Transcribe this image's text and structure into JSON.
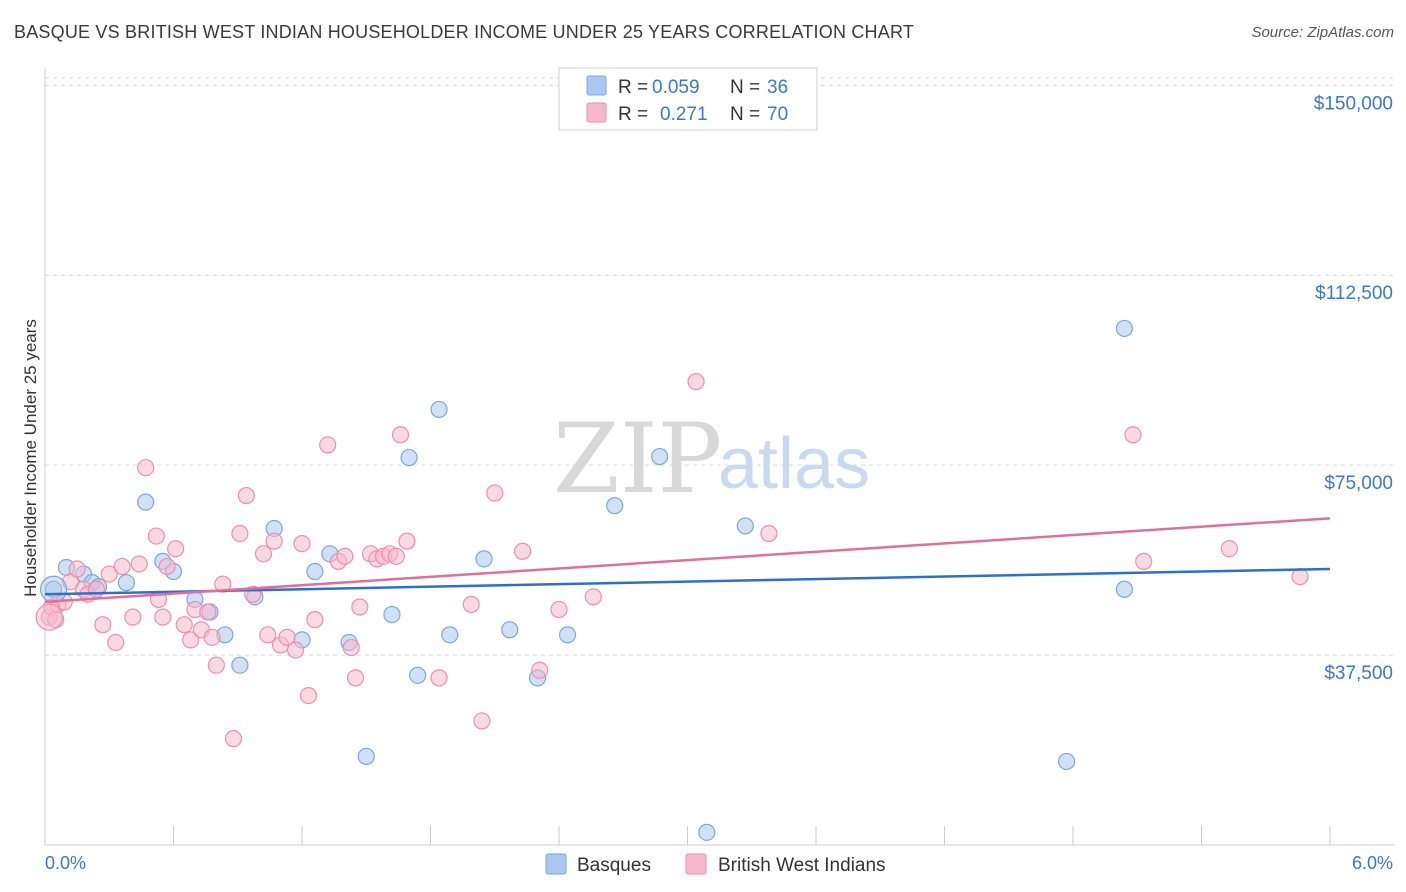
{
  "title": "BASQUE VS BRITISH WEST INDIAN HOUSEHOLDER INCOME UNDER 25 YEARS CORRELATION CHART",
  "source": "Source: ZipAtlas.com",
  "watermark": {
    "zip": "ZIP",
    "atlas": "atlas"
  },
  "legend": {
    "rows": [
      {
        "r_label": "R =",
        "r_value": "0.059",
        "n_label": "N =",
        "n_value": "36",
        "color": "#a9c8ef",
        "stroke": "#7aa7e0"
      },
      {
        "r_label": "R =",
        "r_value": "0.271",
        "n_label": "N =",
        "n_value": "70",
        "color": "#f6b9cc",
        "stroke": "#ee8fae"
      }
    ]
  },
  "bottom_legend": [
    {
      "label": "Basques",
      "color": "#a9c8ef",
      "stroke": "#7aa7e0"
    },
    {
      "label": "British West Indians",
      "color": "#f6b9cc",
      "stroke": "#ee8fae"
    }
  ],
  "chart_data": {
    "type": "scatter",
    "title": "BASQUE VS BRITISH WEST INDIAN HOUSEHOLDER INCOME UNDER 25 YEARS CORRELATION CHART",
    "xlabel": "",
    "ylabel": "Householder Income Under 25 years",
    "xlim": [
      0,
      6
    ],
    "ylim": [
      0,
      155000
    ],
    "x_tick_labels": [
      "0.0%",
      "6.0%"
    ],
    "y_ticks": [
      37500,
      75000,
      112500,
      150000
    ],
    "y_tick_labels": [
      "$37,500",
      "$75,000",
      "$112,500",
      "$150,000"
    ],
    "grid": true,
    "legend_position": "top-center",
    "series": [
      {
        "name": "Basques",
        "color": "#7aa7e0",
        "fill": "#a9c8ef",
        "trend": {
          "x": [
            0,
            6
          ],
          "y": [
            49500,
            54500
          ],
          "color": "#2f6fcc"
        },
        "points": [
          [
            0.04,
            50500
          ],
          [
            0.1,
            54800
          ],
          [
            0.18,
            53500
          ],
          [
            0.22,
            51800
          ],
          [
            0.25,
            51000
          ],
          [
            0.38,
            51800
          ],
          [
            0.47,
            67700
          ],
          [
            0.55,
            56000
          ],
          [
            0.6,
            54000
          ],
          [
            0.7,
            48500
          ],
          [
            0.77,
            46000
          ],
          [
            0.84,
            41500
          ],
          [
            0.91,
            35500
          ],
          [
            0.98,
            49000
          ],
          [
            1.07,
            62500
          ],
          [
            1.2,
            40500
          ],
          [
            1.26,
            54000
          ],
          [
            1.33,
            57500
          ],
          [
            1.42,
            40000
          ],
          [
            1.5,
            17500
          ],
          [
            1.62,
            45500
          ],
          [
            1.7,
            76500
          ],
          [
            1.74,
            33500
          ],
          [
            1.84,
            86000
          ],
          [
            1.89,
            41500
          ],
          [
            2.05,
            56500
          ],
          [
            2.17,
            42500
          ],
          [
            2.3,
            33000
          ],
          [
            2.44,
            41500
          ],
          [
            2.66,
            67000
          ],
          [
            2.87,
            76700
          ],
          [
            3.09,
            2500
          ],
          [
            3.27,
            63000
          ],
          [
            4.77,
            16500
          ],
          [
            5.04,
            50500
          ],
          [
            5.04,
            102000
          ]
        ]
      },
      {
        "name": "British West Indians",
        "color": "#ee8fae",
        "fill": "#f6b9cc",
        "trend": {
          "x": [
            0,
            6
          ],
          "y": [
            48000,
            64500
          ],
          "color": "#e0709a"
        },
        "points": [
          [
            0.02,
            45000
          ],
          [
            0.06,
            47500
          ],
          [
            0.09,
            48000
          ],
          [
            0.12,
            52000
          ],
          [
            0.15,
            54500
          ],
          [
            0.18,
            50500
          ],
          [
            0.2,
            49500
          ],
          [
            0.24,
            50500
          ],
          [
            0.27,
            43500
          ],
          [
            0.3,
            53500
          ],
          [
            0.33,
            40000
          ],
          [
            0.36,
            55000
          ],
          [
            0.41,
            45000
          ],
          [
            0.44,
            55500
          ],
          [
            0.47,
            74500
          ],
          [
            0.52,
            61000
          ],
          [
            0.53,
            48500
          ],
          [
            0.55,
            45000
          ],
          [
            0.57,
            55000
          ],
          [
            0.61,
            58500
          ],
          [
            0.65,
            43500
          ],
          [
            0.68,
            40500
          ],
          [
            0.7,
            46500
          ],
          [
            0.73,
            42500
          ],
          [
            0.76,
            46000
          ],
          [
            0.78,
            41000
          ],
          [
            0.8,
            35500
          ],
          [
            0.83,
            51500
          ],
          [
            0.88,
            21000
          ],
          [
            0.91,
            61500
          ],
          [
            0.94,
            69000
          ],
          [
            0.97,
            49500
          ],
          [
            1.02,
            57500
          ],
          [
            1.04,
            41500
          ],
          [
            1.07,
            60000
          ],
          [
            1.1,
            39500
          ],
          [
            1.13,
            41000
          ],
          [
            1.17,
            38500
          ],
          [
            1.2,
            59500
          ],
          [
            1.23,
            29500
          ],
          [
            1.26,
            44500
          ],
          [
            1.32,
            79000
          ],
          [
            1.37,
            56000
          ],
          [
            1.4,
            57000
          ],
          [
            1.43,
            39000
          ],
          [
            1.45,
            33000
          ],
          [
            1.47,
            47000
          ],
          [
            1.52,
            57500
          ],
          [
            1.55,
            56500
          ],
          [
            1.58,
            57000
          ],
          [
            1.61,
            57500
          ],
          [
            1.64,
            57000
          ],
          [
            1.66,
            81000
          ],
          [
            1.69,
            60000
          ],
          [
            1.84,
            33000
          ],
          [
            1.99,
            47500
          ],
          [
            2.04,
            24500
          ],
          [
            2.1,
            69500
          ],
          [
            2.23,
            58000
          ],
          [
            2.31,
            34500
          ],
          [
            2.4,
            46500
          ],
          [
            2.56,
            49000
          ],
          [
            3.04,
            91500
          ],
          [
            3.38,
            61500
          ],
          [
            5.08,
            81000
          ],
          [
            5.13,
            56000
          ],
          [
            5.53,
            58500
          ],
          [
            5.86,
            53000
          ],
          [
            0.03,
            47000
          ],
          [
            0.05,
            44500
          ]
        ]
      }
    ]
  }
}
